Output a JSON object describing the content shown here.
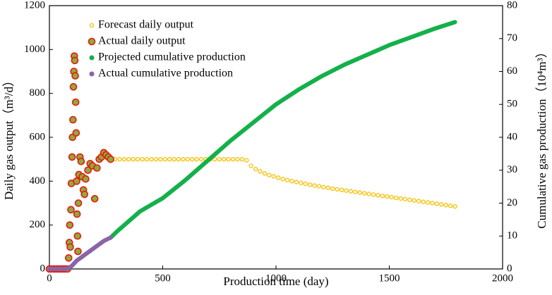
{
  "chart_data": {
    "type": "scatter",
    "xlabel": "Production time (day)",
    "ylabel": "Daily gas output（m³/d）",
    "y2label": "Cumulative gas production（10⁴m³）",
    "xlim": [
      0,
      2000
    ],
    "xticks": [
      0,
      500,
      1000,
      1500,
      2000
    ],
    "ylim": [
      0,
      1200
    ],
    "yticks": [
      0,
      200,
      400,
      600,
      800,
      1000,
      1200
    ],
    "y2lim": [
      0,
      80
    ],
    "y2ticks": [
      0,
      10,
      20,
      30,
      40,
      50,
      60,
      70,
      80
    ],
    "legend": "upper left",
    "series": [
      {
        "name": "Forecast daily output",
        "color": "#f5c000",
        "marker": "hollow",
        "x": [
          270,
          290,
          310,
          330,
          350,
          370,
          390,
          410,
          430,
          450,
          470,
          490,
          510,
          530,
          550,
          570,
          590,
          610,
          630,
          650,
          670,
          690,
          710,
          730,
          750,
          770,
          790,
          810,
          830,
          850,
          870,
          890,
          910,
          930,
          950,
          970,
          990,
          1010,
          1030,
          1050,
          1070,
          1090,
          1110,
          1130,
          1150,
          1170,
          1190,
          1210,
          1230,
          1250,
          1270,
          1290,
          1310,
          1330,
          1350,
          1370,
          1390,
          1410,
          1430,
          1450,
          1470,
          1490,
          1510,
          1530,
          1550,
          1570,
          1590,
          1610,
          1630,
          1650,
          1670,
          1690,
          1710,
          1730,
          1750,
          1770,
          1790
        ],
        "values": [
          500,
          500,
          500,
          500,
          500,
          500,
          500,
          500,
          500,
          500,
          500,
          500,
          500,
          500,
          500,
          500,
          500,
          500,
          500,
          500,
          500,
          500,
          500,
          500,
          500,
          500,
          500,
          500,
          500,
          500,
          495,
          470,
          455,
          445,
          435,
          428,
          422,
          416,
          410,
          405,
          400,
          396,
          392,
          388,
          384,
          380,
          377,
          373,
          370,
          366,
          363,
          360,
          357,
          354,
          351,
          348,
          345,
          342,
          339,
          336,
          333,
          330,
          327,
          324,
          321,
          318,
          315,
          312,
          309,
          306,
          303,
          300,
          297,
          294,
          291,
          288,
          285
        ]
      },
      {
        "name": "Actual daily output",
        "color": "#e8190c",
        "fill": "#8faa3c",
        "marker": "filled",
        "x": [
          0,
          10,
          20,
          30,
          40,
          50,
          60,
          70,
          80,
          85,
          88,
          90,
          92,
          95,
          97,
          100,
          102,
          104,
          106,
          108,
          110,
          112,
          114,
          116,
          118,
          120,
          122,
          124,
          126,
          128,
          130,
          135,
          140,
          145,
          150,
          155,
          160,
          170,
          180,
          190,
          200,
          210,
          220,
          230,
          240,
          250,
          260,
          270
        ],
        "values": [
          0,
          0,
          0,
          0,
          0,
          0,
          0,
          0,
          0,
          50,
          120,
          200,
          100,
          270,
          390,
          510,
          600,
          680,
          830,
          900,
          970,
          950,
          880,
          760,
          620,
          400,
          250,
          150,
          80,
          300,
          430,
          510,
          490,
          420,
          360,
          340,
          410,
          450,
          480,
          470,
          320,
          460,
          500,
          510,
          530,
          520,
          510,
          500
        ]
      },
      {
        "name": "Projected cumulative production",
        "color": "#14b04a",
        "marker": "line",
        "axis": "y2",
        "x": [
          270,
          300,
          350,
          400,
          450,
          500,
          600,
          700,
          800,
          900,
          1000,
          1100,
          1200,
          1300,
          1400,
          1500,
          1600,
          1700,
          1790
        ],
        "values": [
          9.5,
          11.5,
          14.5,
          17.5,
          19.5,
          21.5,
          27,
          33,
          39,
          44.5,
          50,
          54.5,
          58.5,
          62,
          65,
          68,
          70.5,
          73,
          75
        ]
      },
      {
        "name": "Actual cumulative production",
        "color": "#8a63a8",
        "marker": "line",
        "axis": "y2",
        "x": [
          0,
          20,
          40,
          60,
          80,
          100,
          120,
          140,
          160,
          180,
          200,
          220,
          240,
          260,
          270
        ],
        "values": [
          0,
          0,
          0,
          0,
          0,
          1,
          2.5,
          3.5,
          4.5,
          5.5,
          6.5,
          7.5,
          8.5,
          9.2,
          9.5
        ]
      }
    ]
  }
}
